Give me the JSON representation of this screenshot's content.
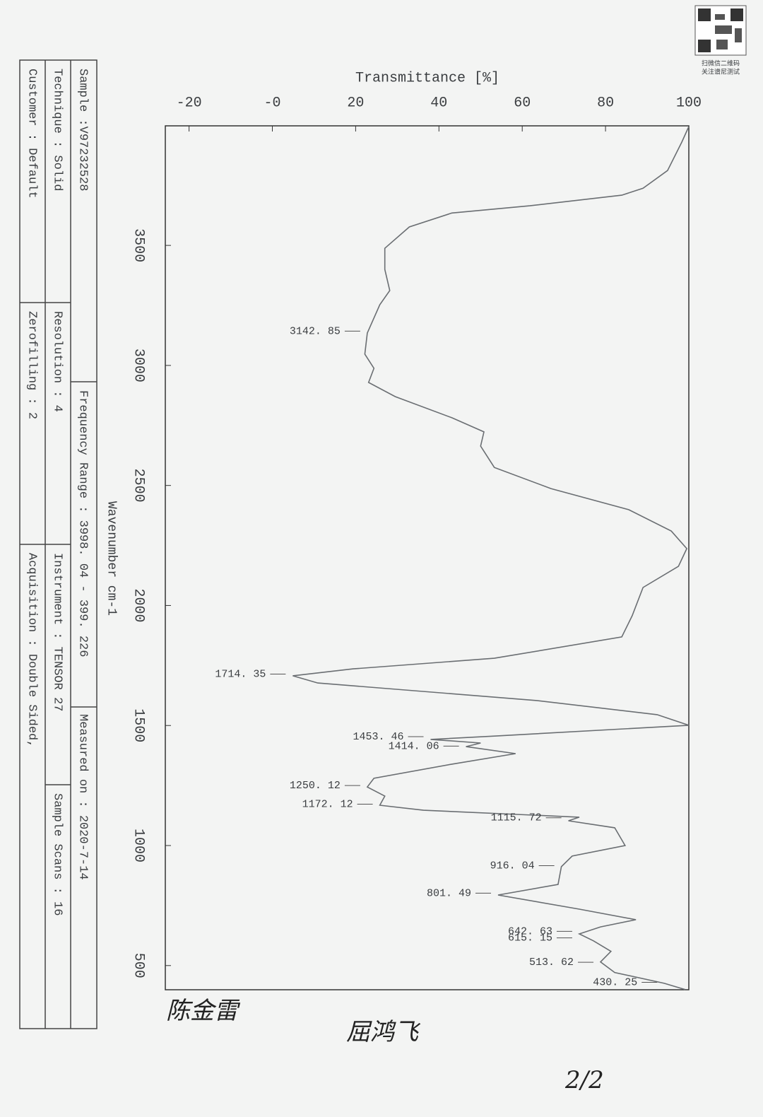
{
  "chart_data": {
    "type": "line",
    "x_label": "Wavenumber cm-1",
    "y_label": "Transmittance [%]",
    "xlim": [
      3998.04,
      399.226
    ],
    "ylim": [
      -25.7,
      100
    ],
    "xticks": [
      3500,
      3000,
      2500,
      2000,
      1500,
      1000,
      500
    ],
    "yticks": [
      -20,
      {
        "value": 0,
        "label": "-0"
      },
      20,
      40,
      60,
      80,
      100
    ],
    "x": [
      3995,
      3930,
      3812,
      3738,
      3709,
      3665,
      3635,
      3577,
      3488,
      3400,
      3312,
      3253,
      3135,
      3047,
      2988,
      2929,
      2870,
      2782,
      2723,
      2664,
      2575,
      2487,
      2399,
      2310,
      2237,
      2163,
      2075,
      1957,
      1869,
      1780,
      1736,
      1707,
      1677,
      1604,
      1545,
      1501,
      1456,
      1442,
      1427,
      1412,
      1383,
      1339,
      1280,
      1244,
      1206,
      1168,
      1147,
      1118,
      1103,
      1074,
      1000,
      956,
      912,
      838,
      794,
      735,
      691,
      661,
      632,
      603,
      559,
      515,
      471,
      426,
      400
    ],
    "series": [
      {
        "name": "V97232528",
        "color": "#6a6e72",
        "values": [
          100,
          98.3,
          94.9,
          89,
          83.9,
          61.8,
          43.1,
          32.9,
          27,
          27,
          28.2,
          25.8,
          22.8,
          22.2,
          24.4,
          23.1,
          29.5,
          43.1,
          50.8,
          50,
          53.3,
          66.9,
          85.6,
          95.8,
          99.5,
          97.5,
          89,
          86.4,
          83.9,
          53.3,
          19.4,
          4.9,
          10.9,
          63.5,
          92.4,
          100,
          53.3,
          38,
          50,
          46.5,
          58.4,
          43.1,
          24.4,
          22.8,
          27,
          25.8,
          36.3,
          73.7,
          71.1,
          82.2,
          84.7,
          72,
          69.4,
          68.6,
          54.2,
          73.7,
          87.3,
          78.8,
          73.7,
          77.1,
          81.3,
          78.8,
          82.2,
          94.1,
          99.1
        ]
      }
    ],
    "peaks": {
      "x": [
        3142.85,
        1714.35,
        1453.46,
        1414.06,
        1250.12,
        1172.12,
        1115.72,
        916.04,
        801.49,
        642.63,
        615.15,
        513.62,
        430.25
      ],
      "y": [
        22.8,
        4.9,
        38,
        46.5,
        22.8,
        25.8,
        71.1,
        69.4,
        54.2,
        73.7,
        73.7,
        78.8,
        94.1
      ],
      "labels": [
        "3142. 85",
        "1714. 35",
        "1453. 46",
        "1414. 06",
        "1250. 12",
        "1172. 12",
        "1115. 72",
        "916. 04",
        "801. 49",
        "642. 63",
        "615. 15",
        "513. 62",
        "430. 25"
      ]
    }
  },
  "info": {
    "rows": [
      [
        "Sample :V97232528",
        "Frequency Range : 3998. 04 - 399. 226",
        "Measured on : 2020-7-14"
      ],
      [
        "Technique : Solid",
        "Resolution : 4",
        "Instrument : TENSOR 27",
        "Sample Scans : 16"
      ],
      [
        "Customer : Default",
        "Zerofilling : 2",
        "Acquisition : Double Sided,"
      ]
    ]
  },
  "qr": {
    "caption": [
      "扫微信二维码",
      "关注谱尼测试"
    ]
  },
  "handwriting": [
    "陈金雷",
    "屈鸿飞",
    "2/2"
  ]
}
